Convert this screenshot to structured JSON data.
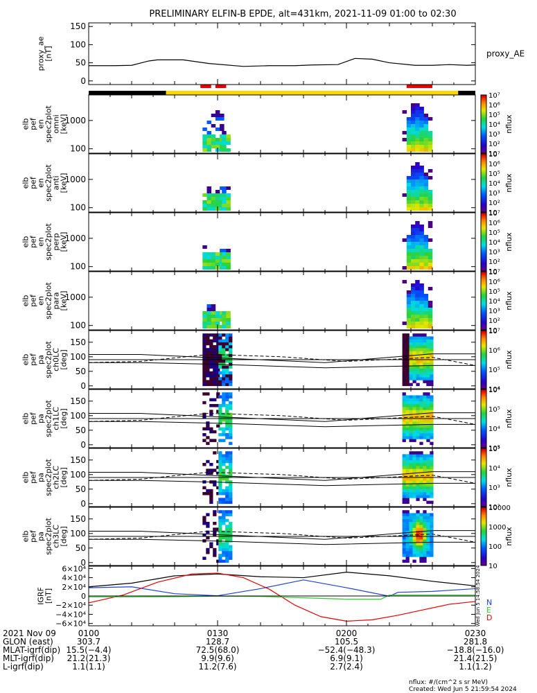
{
  "title": "PRELIMINARY ELFIN-B EPDE, alt=431km, 2021-11-09 01:00 to 02:30",
  "colors": {
    "black": "#000000",
    "red": "#e60000",
    "yellow": "#ffd700",
    "blue": "#1f3fd6",
    "green": "#2ecc2e"
  },
  "sidebar_stamp": "Wed Jun  5 14:58:54 2024",
  "chart_data": [
    {
      "type": "line",
      "ylabel_lines": [
        "proxy_ae",
        "[nT]"
      ],
      "legend": "proxy_AE",
      "ylim": [
        -10,
        160
      ],
      "yticks": [
        {
          "v": 0,
          "t": "0"
        },
        {
          "v": 50,
          "t": "50"
        },
        {
          "v": 100,
          "t": "100"
        },
        {
          "v": 150,
          "t": "150"
        }
      ],
      "series": [
        {
          "name": "proxy_AE",
          "color": "#000000",
          "x": [
            0,
            6,
            10,
            14,
            16,
            22,
            28,
            36,
            42,
            48,
            52,
            58,
            62,
            66,
            70,
            76,
            80,
            84,
            88,
            90
          ],
          "y": [
            42,
            42,
            43,
            55,
            58,
            58,
            48,
            40,
            42,
            42,
            44,
            45,
            62,
            60,
            50,
            43,
            43,
            45,
            43,
            44
          ]
        }
      ]
    },
    {
      "type": "heatmap",
      "ylabel_lines": [
        "elb",
        "pef",
        "en",
        "spec2plot",
        "omni",
        "[keV]"
      ],
      "cbar_label": "nflux",
      "y_scale": "log",
      "yticks": [
        {
          "v": 100,
          "t": "100"
        },
        {
          "v": 1000,
          "t": "1000"
        }
      ],
      "cbar_ticks": [
        "10",
        "10²",
        "10³",
        "10⁴",
        "10⁵",
        "10⁶",
        "10⁷"
      ]
    },
    {
      "type": "heatmap",
      "ylabel_lines": [
        "elb",
        "pef",
        "en",
        "spec2plot",
        "anti",
        "[keV]"
      ],
      "cbar_label": "nflux",
      "y_scale": "log",
      "yticks": [
        {
          "v": 100,
          "t": "100"
        },
        {
          "v": 1000,
          "t": "1000"
        }
      ],
      "cbar_ticks": [
        "10",
        "10²",
        "10³",
        "10⁴",
        "10⁵",
        "10⁶",
        "10⁷"
      ]
    },
    {
      "type": "heatmap",
      "ylabel_lines": [
        "elb",
        "pef",
        "en",
        "spec2plot",
        "perp",
        "[keV]"
      ],
      "cbar_label": "nflux",
      "y_scale": "log",
      "yticks": [
        {
          "v": 100,
          "t": "100"
        },
        {
          "v": 1000,
          "t": "1000"
        }
      ],
      "cbar_ticks": [
        "10",
        "10²",
        "10³",
        "10⁴",
        "10⁵",
        "10⁶",
        "10⁷"
      ]
    },
    {
      "type": "heatmap",
      "ylabel_lines": [
        "elb",
        "pef",
        "en",
        "spec2plot",
        "para",
        "[keV]"
      ],
      "cbar_label": "nflux",
      "y_scale": "log",
      "yticks": [
        {
          "v": 100,
          "t": "100"
        },
        {
          "v": 1000,
          "t": "1000"
        }
      ],
      "cbar_ticks": [
        "10",
        "10²",
        "10³",
        "10⁴",
        "10⁵",
        "10⁶",
        "10⁷"
      ]
    },
    {
      "type": "heatmap",
      "ylabel_lines": [
        "elb",
        "pef",
        "pa",
        "spec2plot",
        "ch0LC",
        "[deg]"
      ],
      "cbar_label": "nflux",
      "ylim": [
        -10,
        190
      ],
      "yticks": [
        {
          "v": 0,
          "t": "0"
        },
        {
          "v": 50,
          "t": "50"
        },
        {
          "v": 100,
          "t": "100"
        },
        {
          "v": 150,
          "t": "150"
        }
      ],
      "cbar_ticks": [
        "10⁴",
        "10⁵",
        "10⁶",
        "10⁷"
      ]
    },
    {
      "type": "heatmap",
      "ylabel_lines": [
        "elb",
        "pef",
        "pa",
        "spec2plot",
        "ch1LC",
        "[deg]"
      ],
      "cbar_label": "nflux",
      "ylim": [
        -10,
        190
      ],
      "yticks": [
        {
          "v": 0,
          "t": "0"
        },
        {
          "v": 50,
          "t": "50"
        },
        {
          "v": 100,
          "t": "100"
        },
        {
          "v": 150,
          "t": "150"
        }
      ],
      "cbar_ticks": [
        "10³",
        "10⁴",
        "10⁵",
        "10⁶"
      ]
    },
    {
      "type": "heatmap",
      "ylabel_lines": [
        "elb",
        "pef",
        "pa",
        "spec2plot",
        "ch2LC",
        "[deg]"
      ],
      "cbar_label": "nflux",
      "ylim": [
        -10,
        190
      ],
      "yticks": [
        {
          "v": 0,
          "t": "0"
        },
        {
          "v": 50,
          "t": "50"
        },
        {
          "v": 100,
          "t": "100"
        },
        {
          "v": 150,
          "t": "150"
        }
      ],
      "cbar_ticks": [
        "10²",
        "10³",
        "10⁴",
        "10⁵"
      ]
    },
    {
      "type": "heatmap",
      "ylabel_lines": [
        "elb",
        "pef",
        "pa",
        "spec2plot",
        "ch3LC",
        "[deg]"
      ],
      "cbar_label": "nflux",
      "ylim": [
        -10,
        190
      ],
      "yticks": [
        {
          "v": 0,
          "t": "0"
        },
        {
          "v": 50,
          "t": "50"
        },
        {
          "v": 100,
          "t": "100"
        },
        {
          "v": 150,
          "t": "150"
        }
      ],
      "cbar_ticks": [
        "10",
        "100",
        "1000",
        "10000"
      ]
    },
    {
      "type": "line",
      "ylabel_lines": [
        "IGRF",
        "[nT]"
      ],
      "ylim": [
        -65000,
        65000
      ],
      "yticks": [
        {
          "v": 60000,
          "t": "6×10⁴"
        },
        {
          "v": 40000,
          "t": "4×10⁴"
        },
        {
          "v": 20000,
          "t": "2×10⁴"
        },
        {
          "v": 0,
          "t": "0"
        },
        {
          "v": -20000,
          "t": "−2×10⁴"
        },
        {
          "v": -40000,
          "t": "−4×10⁴"
        },
        {
          "v": -60000,
          "t": "−6×10⁴"
        }
      ],
      "legend_labels": [
        "N",
        "E",
        "D"
      ],
      "series": [
        {
          "name": "N",
          "color": "#000000",
          "x": [
            0,
            10,
            20,
            30,
            40,
            50,
            60,
            70,
            80,
            90
          ],
          "y": [
            20000,
            28000,
            44000,
            48000,
            42000,
            40000,
            52000,
            44000,
            32000,
            22000
          ]
        },
        {
          "name": "E",
          "color": "#1f3fd6",
          "x": [
            0,
            10,
            20,
            30,
            40,
            50,
            60,
            70,
            72,
            80,
            90
          ],
          "y": [
            18000,
            20000,
            5000,
            500,
            16000,
            35000,
            18000,
            -500,
            8000,
            10000,
            16000
          ]
        },
        {
          "name": "D",
          "color": "#e60000",
          "x": [
            0,
            8,
            16,
            24,
            30,
            36,
            42,
            48,
            54,
            60,
            66,
            72,
            78,
            84,
            90
          ],
          "y": [
            -15000,
            2000,
            30000,
            48000,
            50000,
            40000,
            15000,
            -20000,
            -45000,
            -55000,
            -52000,
            -42000,
            -30000,
            -18000,
            -12000
          ]
        },
        {
          "name": "green",
          "color": "#2ecc2e",
          "x": [
            0,
            10,
            20,
            30,
            40,
            50,
            60,
            68,
            70,
            80,
            90
          ],
          "y": [
            -2000,
            -2000,
            -1500,
            -500,
            -1000,
            -4000,
            -7000,
            -7000,
            2000,
            2000,
            2000
          ]
        }
      ]
    }
  ],
  "status_bar": [
    {
      "x": 0,
      "x2": 18,
      "c": "#000000"
    },
    {
      "x": 18,
      "x2": 86,
      "c": "#ffd700"
    },
    {
      "x": 86,
      "x2": 90,
      "c": "#000000"
    },
    {
      "x": 26,
      "x2": 28.5,
      "c": "#e60000",
      "top": true
    },
    {
      "x": 29.5,
      "x2": 32,
      "c": "#e60000",
      "top": true
    },
    {
      "x": 74,
      "x2": 80,
      "c": "#e60000",
      "top": true
    }
  ],
  "footer": {
    "row_labels": [
      "2021 Nov 09",
      "GLON (east)",
      "MLAT-igrf(dip)",
      "MLT-igrf(dip)",
      "L-igrf(dip)"
    ],
    "columns": [
      {
        "x": 0,
        "vals": [
          "0100",
          "303.7",
          "15.5(−4.4)",
          "21.2(21.3)",
          "1.1(1.1)"
        ]
      },
      {
        "x": 30,
        "vals": [
          "0130",
          "128.7",
          "72.5(68.0)",
          "9.9(9.6)",
          "11.2(7.6)"
        ]
      },
      {
        "x": 60,
        "vals": [
          "0200",
          "105.5",
          "−52.4(−48.3)",
          "6.9(9.1)",
          "2.7(2.4)"
        ]
      },
      {
        "x": 90,
        "vals": [
          "0230",
          "281.8",
          "−18.8(−16.0)",
          "21.4(21.5)",
          "1.1(1.2)"
        ]
      }
    ],
    "units_note": "nflux: #/(cm^2 s sr MeV)",
    "created": "Created: Wed Jun  5 21:59:54 2024"
  }
}
